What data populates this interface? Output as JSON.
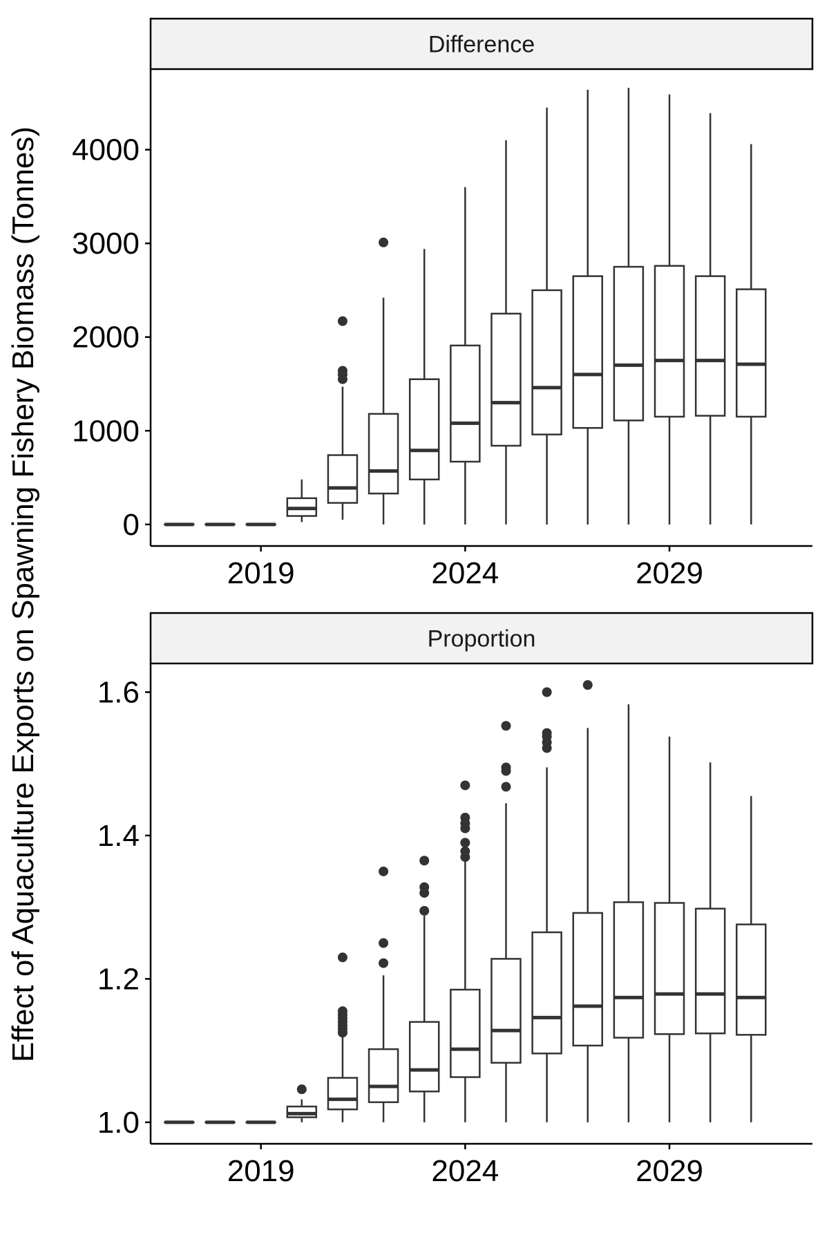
{
  "ylabel": "Effect of Aquaculture Exports on Spawning Fishery Biomass (Tonnes)",
  "colors": {
    "box_stroke": "#333333",
    "strip_fill": "#f2f2f2",
    "axis": "#000000"
  },
  "chart_data": [
    {
      "type": "box",
      "panel": "Difference",
      "xticks": [
        "2019",
        "2024",
        "2029"
      ],
      "yticks": [
        "0",
        "1000",
        "2000",
        "3000",
        "4000"
      ],
      "yaxis_values": [
        0,
        1000,
        2000,
        3000,
        4000
      ],
      "xlim": [
        2016.3,
        2032.5
      ],
      "ylim": [
        -230,
        4860
      ],
      "boxes": [
        {
          "year": 2017,
          "lower": 0,
          "q1": 0,
          "median": 0,
          "q3": 0,
          "upper": 0,
          "outliers": []
        },
        {
          "year": 2018,
          "lower": 0,
          "q1": 0,
          "median": 0,
          "q3": 0,
          "upper": 0,
          "outliers": []
        },
        {
          "year": 2019,
          "lower": 0,
          "q1": 0,
          "median": 0,
          "q3": 0,
          "upper": 0,
          "outliers": []
        },
        {
          "year": 2020,
          "lower": 25,
          "q1": 90,
          "median": 170,
          "q3": 280,
          "upper": 480,
          "outliers": []
        },
        {
          "year": 2021,
          "lower": 50,
          "q1": 230,
          "median": 390,
          "q3": 740,
          "upper": 1470,
          "outliers": [
            1550,
            1600,
            1640,
            2170
          ]
        },
        {
          "year": 2022,
          "lower": 0,
          "q1": 330,
          "median": 570,
          "q3": 1180,
          "upper": 2420,
          "outliers": [
            3010
          ]
        },
        {
          "year": 2023,
          "lower": 0,
          "q1": 480,
          "median": 790,
          "q3": 1550,
          "upper": 2940,
          "outliers": []
        },
        {
          "year": 2024,
          "lower": 0,
          "q1": 670,
          "median": 1080,
          "q3": 1910,
          "upper": 3600,
          "outliers": []
        },
        {
          "year": 2025,
          "lower": 0,
          "q1": 840,
          "median": 1300,
          "q3": 2250,
          "upper": 4100,
          "outliers": []
        },
        {
          "year": 2026,
          "lower": 0,
          "q1": 960,
          "median": 1460,
          "q3": 2500,
          "upper": 4450,
          "outliers": []
        },
        {
          "year": 2027,
          "lower": 0,
          "q1": 1030,
          "median": 1600,
          "q3": 2650,
          "upper": 4640,
          "outliers": []
        },
        {
          "year": 2028,
          "lower": 0,
          "q1": 1110,
          "median": 1700,
          "q3": 2750,
          "upper": 4660,
          "outliers": []
        },
        {
          "year": 2029,
          "lower": 0,
          "q1": 1150,
          "median": 1750,
          "q3": 2760,
          "upper": 4590,
          "outliers": []
        },
        {
          "year": 2030,
          "lower": 0,
          "q1": 1160,
          "median": 1750,
          "q3": 2650,
          "upper": 4390,
          "outliers": []
        },
        {
          "year": 2031,
          "lower": 0,
          "q1": 1150,
          "median": 1710,
          "q3": 2510,
          "upper": 4060,
          "outliers": []
        }
      ]
    },
    {
      "type": "box",
      "panel": "Proportion",
      "xticks": [
        "2019",
        "2024",
        "2029"
      ],
      "yticks": [
        "1.0",
        "1.2",
        "1.4",
        "1.6"
      ],
      "yaxis_values": [
        1.0,
        1.2,
        1.4,
        1.6
      ],
      "xlim": [
        2016.3,
        2032.5
      ],
      "ylim": [
        0.97,
        1.64
      ],
      "boxes": [
        {
          "year": 2017,
          "lower": 1.0,
          "q1": 1.0,
          "median": 1.0,
          "q3": 1.0,
          "upper": 1.0,
          "outliers": []
        },
        {
          "year": 2018,
          "lower": 1.0,
          "q1": 1.0,
          "median": 1.0,
          "q3": 1.0,
          "upper": 1.0,
          "outliers": []
        },
        {
          "year": 2019,
          "lower": 1.0,
          "q1": 1.0,
          "median": 1.0,
          "q3": 1.0,
          "upper": 1.0,
          "outliers": []
        },
        {
          "year": 2020,
          "lower": 1.0,
          "q1": 1.007,
          "median": 1.012,
          "q3": 1.022,
          "upper": 1.032,
          "outliers": [
            1.046
          ]
        },
        {
          "year": 2021,
          "lower": 1.0,
          "q1": 1.018,
          "median": 1.032,
          "q3": 1.062,
          "upper": 1.12,
          "outliers": [
            1.125,
            1.13,
            1.135,
            1.14,
            1.145,
            1.15,
            1.155,
            1.23
          ]
        },
        {
          "year": 2022,
          "lower": 1.0,
          "q1": 1.028,
          "median": 1.05,
          "q3": 1.102,
          "upper": 1.205,
          "outliers": [
            1.222,
            1.25,
            1.35
          ]
        },
        {
          "year": 2023,
          "lower": 1.0,
          "q1": 1.043,
          "median": 1.073,
          "q3": 1.14,
          "upper": 1.288,
          "outliers": [
            1.295,
            1.32,
            1.328,
            1.365
          ]
        },
        {
          "year": 2024,
          "lower": 1.0,
          "q1": 1.063,
          "median": 1.102,
          "q3": 1.185,
          "upper": 1.365,
          "outliers": [
            1.37,
            1.378,
            1.39,
            1.41,
            1.417,
            1.425,
            1.47
          ]
        },
        {
          "year": 2025,
          "lower": 1.0,
          "q1": 1.083,
          "median": 1.128,
          "q3": 1.228,
          "upper": 1.445,
          "outliers": [
            1.468,
            1.49,
            1.495,
            1.553
          ]
        },
        {
          "year": 2026,
          "lower": 1.0,
          "q1": 1.096,
          "median": 1.146,
          "q3": 1.265,
          "upper": 1.495,
          "outliers": [
            1.522,
            1.53,
            1.538,
            1.543,
            1.6
          ]
        },
        {
          "year": 2027,
          "lower": 1.0,
          "q1": 1.107,
          "median": 1.162,
          "q3": 1.292,
          "upper": 1.55,
          "outliers": [
            1.61
          ]
        },
        {
          "year": 2028,
          "lower": 1.0,
          "q1": 1.118,
          "median": 1.174,
          "q3": 1.307,
          "upper": 1.583,
          "outliers": []
        },
        {
          "year": 2029,
          "lower": 1.0,
          "q1": 1.123,
          "median": 1.179,
          "q3": 1.306,
          "upper": 1.538,
          "outliers": []
        },
        {
          "year": 2030,
          "lower": 1.0,
          "q1": 1.124,
          "median": 1.179,
          "q3": 1.298,
          "upper": 1.502,
          "outliers": []
        },
        {
          "year": 2031,
          "lower": 1.0,
          "q1": 1.122,
          "median": 1.174,
          "q3": 1.276,
          "upper": 1.455,
          "outliers": []
        }
      ]
    }
  ]
}
